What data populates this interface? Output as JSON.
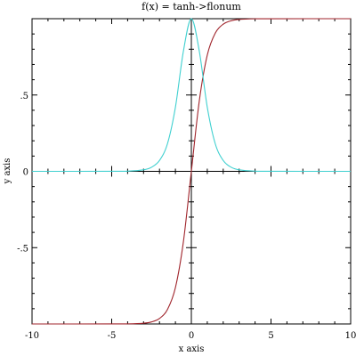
{
  "chart_data": {
    "type": "line",
    "title": "f(x) = tanh->flonum",
    "xlabel": "x axis",
    "ylabel": "y axis",
    "xlim": [
      -10,
      10
    ],
    "ylim": [
      -1,
      1
    ],
    "grid": false,
    "x_ticks": [
      {
        "value": -10,
        "label": "-10"
      },
      {
        "value": -5,
        "label": "-5"
      },
      {
        "value": 0,
        "label": "0"
      },
      {
        "value": 5,
        "label": "5"
      },
      {
        "value": 10,
        "label": "10"
      }
    ],
    "y_ticks": [
      {
        "value": -0.5,
        "label": "-.5"
      },
      {
        "value": 0,
        "label": "0"
      },
      {
        "value": 0.5,
        "label": ".5"
      }
    ],
    "series": [
      {
        "function": "tanh(x)",
        "color": "#a0252c",
        "x": [
          -10,
          -5,
          -4,
          -3,
          -2.5,
          -2,
          -1.5,
          -1,
          -0.5,
          0,
          0.5,
          1,
          1.5,
          2,
          2.5,
          3,
          4,
          5,
          10
        ],
        "y": [
          -1.0,
          -0.9999,
          -0.9993,
          -0.9951,
          -0.9866,
          -0.964,
          -0.9051,
          -0.7616,
          -0.4621,
          0.0,
          0.4621,
          0.7616,
          0.9051,
          0.964,
          0.9866,
          0.9951,
          0.9993,
          0.9999,
          1.0
        ]
      },
      {
        "function": "derivative of tanh(x)",
        "color": "#40d0d0",
        "x": [
          -10,
          -5,
          -4,
          -3,
          -2.5,
          -2,
          -1.5,
          -1,
          -0.5,
          0,
          0.5,
          1,
          1.5,
          2,
          2.5,
          3,
          4,
          5,
          10
        ],
        "y": [
          0.0,
          0.0002,
          0.0013,
          0.0099,
          0.0266,
          0.0707,
          0.1807,
          0.42,
          0.7864,
          1.0,
          0.7864,
          0.42,
          0.1807,
          0.0707,
          0.0266,
          0.0099,
          0.0013,
          0.0002,
          0.0
        ]
      }
    ]
  }
}
